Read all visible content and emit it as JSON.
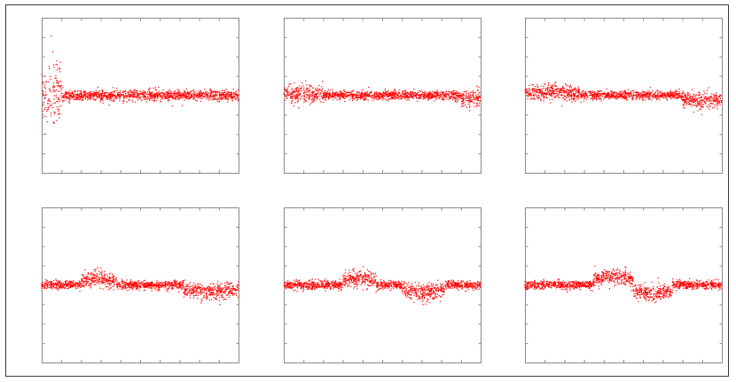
{
  "figure": {
    "border_color": "#3a3a3a",
    "axes_color": "#8a8a8a",
    "marker_color": "#ff0000"
  },
  "chart_data": [
    {
      "type": "scatter",
      "panel": 1,
      "title": "",
      "xlabel": "",
      "ylabel": "",
      "xlim": [
        0,
        1
      ],
      "ylim": [
        -1,
        1
      ],
      "grid": false,
      "legend": "none",
      "baseline": 0.0,
      "baseline_spread": 0.06,
      "features": [
        {
          "x_range": [
            0.0,
            0.11
          ],
          "spread": 0.42,
          "shift": 0.0
        }
      ]
    },
    {
      "type": "scatter",
      "panel": 2,
      "title": "",
      "xlabel": "",
      "ylabel": "",
      "xlim": [
        0,
        1
      ],
      "ylim": [
        -1,
        1
      ],
      "grid": false,
      "legend": "none",
      "baseline": 0.0,
      "baseline_spread": 0.05,
      "features": [
        {
          "x_range": [
            0.0,
            0.2
          ],
          "spread": 0.12,
          "shift": 0.02
        },
        {
          "x_range": [
            0.9,
            1.0
          ],
          "spread": 0.12,
          "shift": -0.05
        }
      ]
    },
    {
      "type": "scatter",
      "panel": 3,
      "title": "",
      "xlabel": "",
      "ylabel": "",
      "xlim": [
        0,
        1
      ],
      "ylim": [
        -1,
        1
      ],
      "grid": false,
      "legend": "none",
      "baseline": 0.0,
      "baseline_spread": 0.05,
      "features": [
        {
          "x_range": [
            0.0,
            0.28
          ],
          "spread": 0.1,
          "shift": 0.04
        },
        {
          "x_range": [
            0.8,
            1.0
          ],
          "spread": 0.1,
          "shift": -0.08
        }
      ]
    },
    {
      "type": "scatter",
      "panel": 4,
      "title": "",
      "xlabel": "",
      "ylabel": "",
      "xlim": [
        0,
        1
      ],
      "ylim": [
        -1,
        1
      ],
      "grid": false,
      "legend": "none",
      "baseline": 0.0,
      "baseline_spread": 0.05,
      "features": [
        {
          "x_range": [
            0.2,
            0.38
          ],
          "spread": 0.1,
          "shift": 0.08
        },
        {
          "x_range": [
            0.72,
            1.0
          ],
          "spread": 0.1,
          "shift": -0.1
        }
      ]
    },
    {
      "type": "scatter",
      "panel": 5,
      "title": "",
      "xlabel": "",
      "ylabel": "",
      "xlim": [
        0,
        1
      ],
      "ylim": [
        -1,
        1
      ],
      "grid": false,
      "legend": "none",
      "baseline": 0.0,
      "baseline_spread": 0.05,
      "features": [
        {
          "x_range": [
            0.3,
            0.47
          ],
          "spread": 0.1,
          "shift": 0.1
        },
        {
          "x_range": [
            0.6,
            0.82
          ],
          "spread": 0.1,
          "shift": -0.1
        }
      ]
    },
    {
      "type": "scatter",
      "panel": 6,
      "title": "",
      "xlabel": "",
      "ylabel": "",
      "xlim": [
        0,
        1
      ],
      "ylim": [
        -1,
        1
      ],
      "grid": false,
      "legend": "none",
      "baseline": 0.0,
      "baseline_spread": 0.05,
      "features": [
        {
          "x_range": [
            0.35,
            0.55
          ],
          "spread": 0.1,
          "shift": 0.12
        },
        {
          "x_range": [
            0.55,
            0.75
          ],
          "spread": 0.1,
          "shift": -0.12
        }
      ]
    }
  ]
}
